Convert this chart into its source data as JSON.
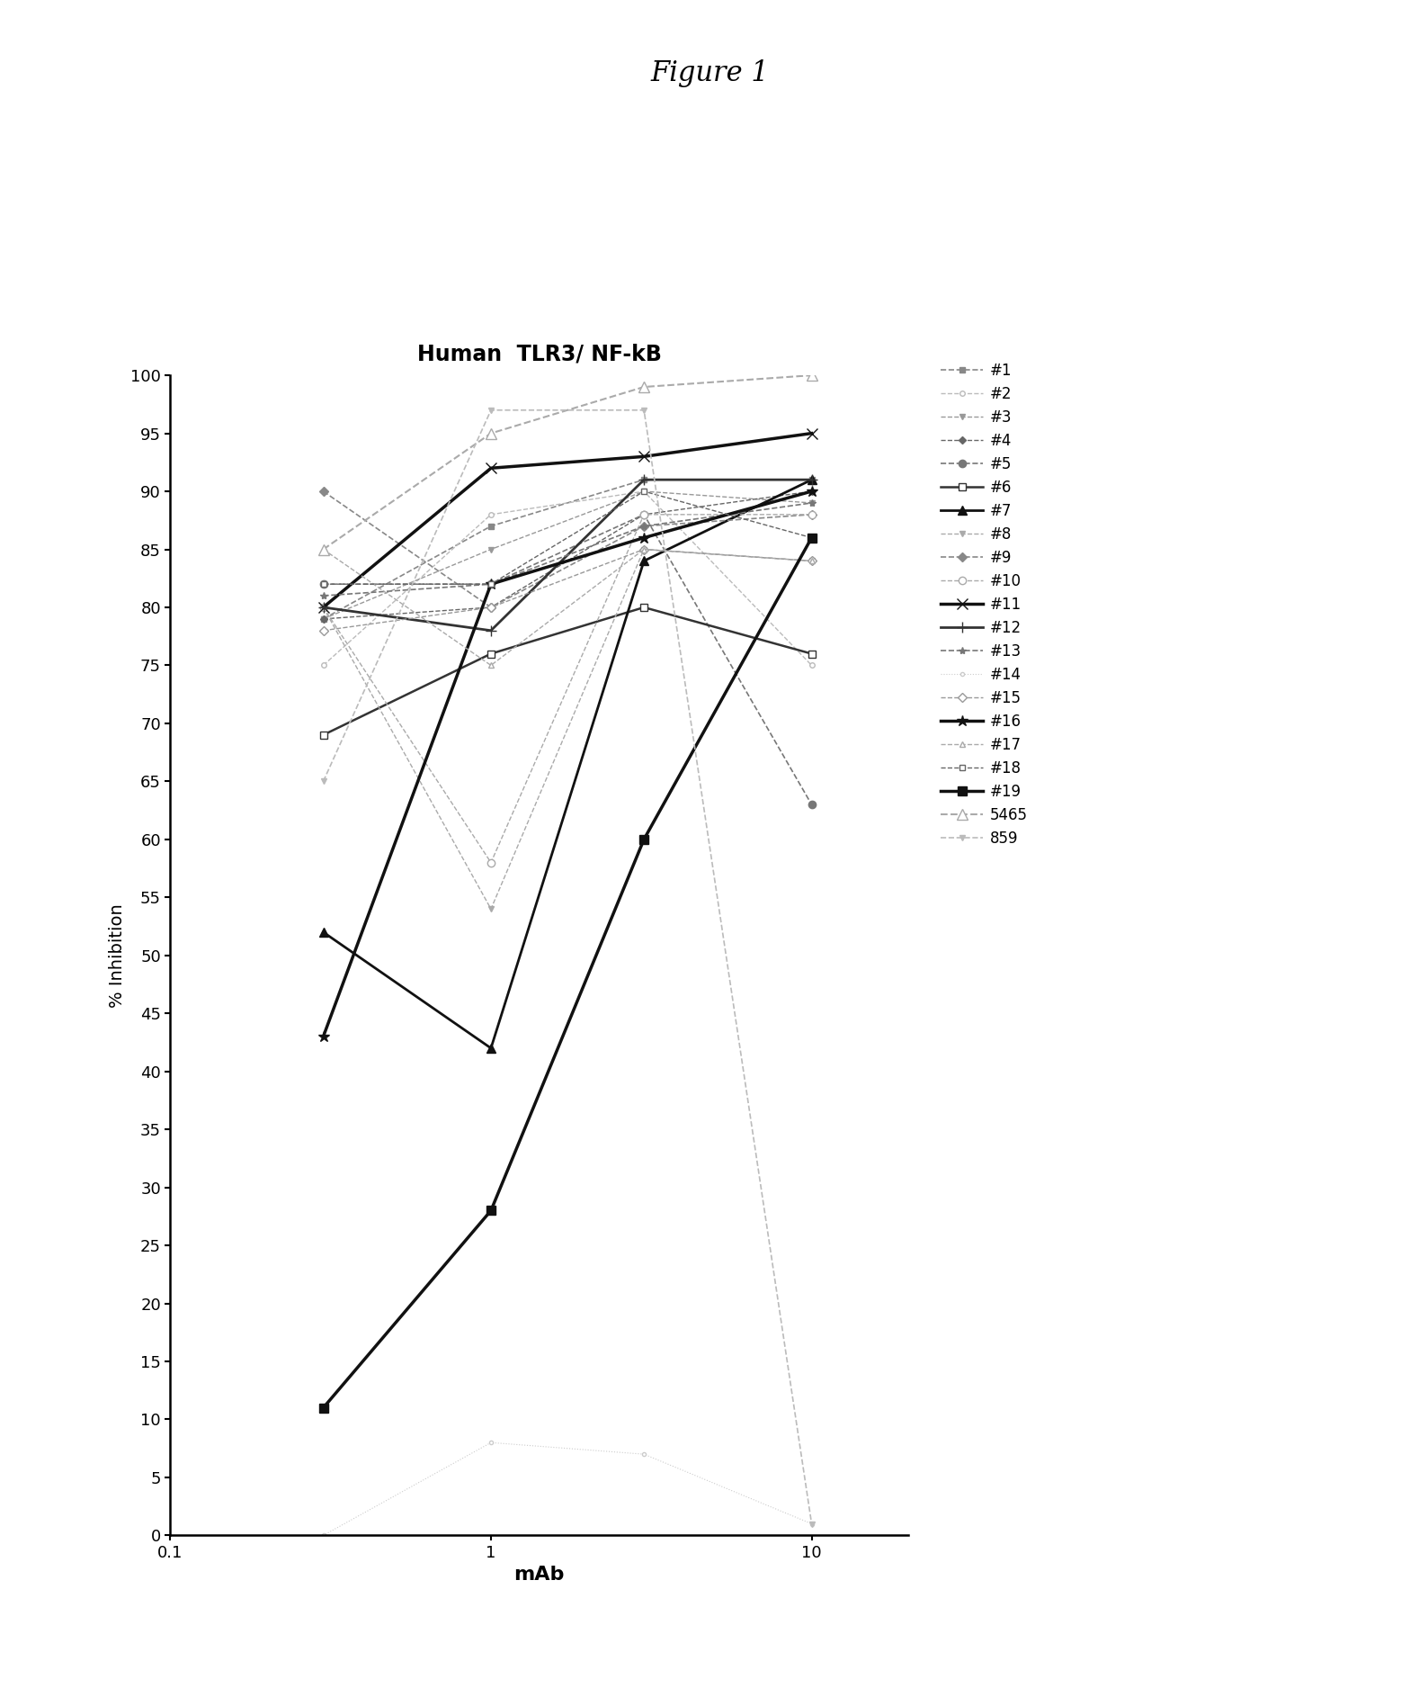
{
  "title": "Human  TLR3/ NF-kB",
  "figure_title": "Figure 1",
  "xlabel": "mAb",
  "ylabel": "% Inhibition",
  "xlim": [
    0.1,
    20
  ],
  "ylim": [
    0,
    100
  ],
  "yticks": [
    0,
    5,
    10,
    15,
    20,
    25,
    30,
    35,
    40,
    45,
    50,
    55,
    60,
    65,
    70,
    75,
    80,
    85,
    90,
    95,
    100
  ],
  "xticks": [
    0.1,
    1,
    10
  ],
  "series": [
    {
      "label": "#1",
      "x": [
        0.3,
        1,
        3,
        10
      ],
      "y": [
        79,
        87,
        91,
        91
      ],
      "color": "#888888",
      "marker": "s",
      "markersize": 5,
      "linewidth": 1.2,
      "linestyle": "--",
      "markerfacecolor": "#888888"
    },
    {
      "label": "#2",
      "x": [
        0.3,
        1,
        3,
        10
      ],
      "y": [
        75,
        88,
        90,
        75
      ],
      "color": "#bbbbbb",
      "marker": "o",
      "markersize": 4,
      "linewidth": 1.0,
      "linestyle": "--",
      "markerfacecolor": "white"
    },
    {
      "label": "#3",
      "x": [
        0.3,
        1,
        3,
        10
      ],
      "y": [
        79,
        85,
        90,
        89
      ],
      "color": "#999999",
      "marker": "v",
      "markersize": 5,
      "linewidth": 1.0,
      "linestyle": "--",
      "markerfacecolor": "#999999"
    },
    {
      "label": "#4",
      "x": [
        0.3,
        1,
        3,
        10
      ],
      "y": [
        79,
        80,
        88,
        90
      ],
      "color": "#666666",
      "marker": "D",
      "markersize": 4,
      "linewidth": 1.0,
      "linestyle": "--",
      "markerfacecolor": "#666666"
    },
    {
      "label": "#5",
      "x": [
        0.3,
        1,
        3,
        10
      ],
      "y": [
        82,
        82,
        88,
        63
      ],
      "color": "#777777",
      "marker": "o",
      "markersize": 6,
      "linewidth": 1.2,
      "linestyle": "--",
      "markerfacecolor": "#777777"
    },
    {
      "label": "#6",
      "x": [
        0.3,
        1,
        3,
        10
      ],
      "y": [
        69,
        76,
        80,
        76
      ],
      "color": "#333333",
      "marker": "s",
      "markersize": 6,
      "linewidth": 1.8,
      "linestyle": "-",
      "markerfacecolor": "white"
    },
    {
      "label": "#7",
      "x": [
        0.3,
        1,
        3,
        10
      ],
      "y": [
        52,
        42,
        84,
        91
      ],
      "color": "#111111",
      "marker": "^",
      "markersize": 7,
      "linewidth": 2.0,
      "linestyle": "-",
      "markerfacecolor": "#111111"
    },
    {
      "label": "#8",
      "x": [
        0.3,
        1,
        3,
        10
      ],
      "y": [
        80,
        54,
        85,
        84
      ],
      "color": "#aaaaaa",
      "marker": "v",
      "markersize": 5,
      "linewidth": 1.0,
      "linestyle": "--",
      "markerfacecolor": "#aaaaaa"
    },
    {
      "label": "#9",
      "x": [
        0.3,
        1,
        3,
        10
      ],
      "y": [
        90,
        80,
        87,
        88
      ],
      "color": "#888888",
      "marker": "D",
      "markersize": 5,
      "linewidth": 1.2,
      "linestyle": "--",
      "markerfacecolor": "#888888"
    },
    {
      "label": "#10",
      "x": [
        0.3,
        1,
        3,
        10
      ],
      "y": [
        80,
        58,
        88,
        88
      ],
      "color": "#aaaaaa",
      "marker": "o",
      "markersize": 6,
      "linewidth": 1.0,
      "linestyle": "--",
      "markerfacecolor": "white"
    },
    {
      "label": "#11",
      "x": [
        0.3,
        1,
        3,
        10
      ],
      "y": [
        80,
        92,
        93,
        95
      ],
      "color": "#111111",
      "marker": "x",
      "markersize": 8,
      "linewidth": 2.5,
      "linestyle": "-",
      "markerfacecolor": "#111111"
    },
    {
      "label": "#12",
      "x": [
        0.3,
        1,
        3,
        10
      ],
      "y": [
        80,
        78,
        91,
        91
      ],
      "color": "#333333",
      "marker": "+",
      "markersize": 8,
      "linewidth": 2.0,
      "linestyle": "-",
      "markerfacecolor": "#333333"
    },
    {
      "label": "#13",
      "x": [
        0.3,
        1,
        3,
        10
      ],
      "y": [
        81,
        82,
        87,
        89
      ],
      "color": "#777777",
      "marker": "*",
      "markersize": 6,
      "linewidth": 1.2,
      "linestyle": "--",
      "markerfacecolor": "#777777"
    },
    {
      "label": "#14",
      "x": [
        0.3,
        1,
        3,
        10
      ],
      "y": [
        0,
        8,
        7,
        1
      ],
      "color": "#cccccc",
      "marker": "o",
      "markersize": 3,
      "linewidth": 0.8,
      "linestyle": ":",
      "markerfacecolor": "white"
    },
    {
      "label": "#15",
      "x": [
        0.3,
        1,
        3,
        10
      ],
      "y": [
        78,
        80,
        85,
        84
      ],
      "color": "#999999",
      "marker": "D",
      "markersize": 5,
      "linewidth": 1.0,
      "linestyle": "--",
      "markerfacecolor": "white"
    },
    {
      "label": "#16",
      "x": [
        0.3,
        1,
        3,
        10
      ],
      "y": [
        43,
        82,
        86,
        90
      ],
      "color": "#111111",
      "marker": "*",
      "markersize": 9,
      "linewidth": 2.5,
      "linestyle": "-",
      "markerfacecolor": "#111111"
    },
    {
      "label": "#17",
      "x": [
        0.3,
        1,
        3,
        10
      ],
      "y": [
        85,
        75,
        85,
        84
      ],
      "color": "#aaaaaa",
      "marker": "^",
      "markersize": 5,
      "linewidth": 1.0,
      "linestyle": "--",
      "markerfacecolor": "white"
    },
    {
      "label": "#18",
      "x": [
        0.3,
        1,
        3,
        10
      ],
      "y": [
        82,
        82,
        90,
        86
      ],
      "color": "#666666",
      "marker": "s",
      "markersize": 5,
      "linewidth": 1.0,
      "linestyle": "--",
      "markerfacecolor": "white"
    },
    {
      "label": "#19",
      "x": [
        0.3,
        1,
        3,
        10
      ],
      "y": [
        11,
        28,
        60,
        86
      ],
      "color": "#111111",
      "marker": "s",
      "markersize": 7,
      "linewidth": 2.5,
      "linestyle": "-",
      "markerfacecolor": "#111111"
    },
    {
      "label": "5465",
      "x": [
        0.3,
        1,
        3,
        10
      ],
      "y": [
        85,
        95,
        99,
        100
      ],
      "color": "#aaaaaa",
      "marker": "^",
      "markersize": 8,
      "linewidth": 1.5,
      "linestyle": "--",
      "markerfacecolor": "white"
    },
    {
      "label": "859",
      "x": [
        0.3,
        1,
        3,
        10
      ],
      "y": [
        65,
        97,
        97,
        1
      ],
      "color": "#bbbbbb",
      "marker": "v",
      "markersize": 5,
      "linewidth": 1.2,
      "linestyle": "--",
      "markerfacecolor": "#bbbbbb"
    }
  ]
}
